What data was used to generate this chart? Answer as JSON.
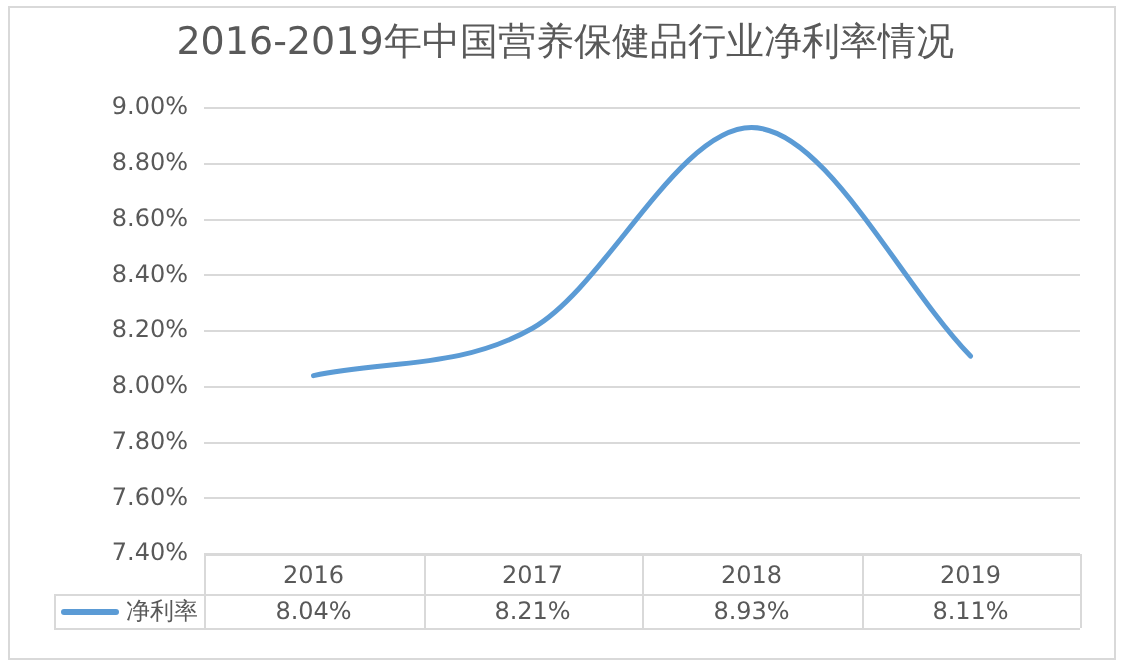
{
  "chart_data": {
    "type": "line",
    "title": "2016-2019年中国营养保健品行业净利率情况",
    "categories": [
      "2016",
      "2017",
      "2018",
      "2019"
    ],
    "series": [
      {
        "name": "净利率",
        "color": "#5b9bd5",
        "values": [
          8.04,
          8.21,
          8.93,
          8.11
        ],
        "value_labels": [
          "8.04%",
          "8.21%",
          "8.93%",
          "8.11%"
        ]
      }
    ],
    "ylim": [
      7.4,
      9.0
    ],
    "yticks": [
      {
        "value": 7.4,
        "label": "7.40%"
      },
      {
        "value": 7.6,
        "label": "7.60%"
      },
      {
        "value": 7.8,
        "label": "7.80%"
      },
      {
        "value": 8.0,
        "label": "8.00%"
      },
      {
        "value": 8.2,
        "label": "8.20%"
      },
      {
        "value": 8.4,
        "label": "8.40%"
      },
      {
        "value": 8.6,
        "label": "8.60%"
      },
      {
        "value": 8.8,
        "label": "8.80%"
      },
      {
        "value": 9.0,
        "label": "9.00%"
      }
    ],
    "grid": "y",
    "legend": "bottom left",
    "marker": "none",
    "line_style": "solid"
  }
}
